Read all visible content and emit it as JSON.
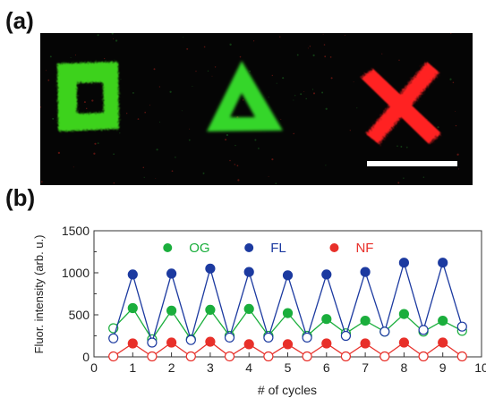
{
  "panels": {
    "a": "(a)",
    "b": "(b)"
  },
  "micrograph": {
    "background": "#050505",
    "shapes": [
      {
        "name": "square",
        "color": "#3ed21e"
      },
      {
        "name": "triangle",
        "color": "#34d62a"
      },
      {
        "name": "cross",
        "color": "#ff2020"
      }
    ],
    "scale_bar_color": "#ffffff"
  },
  "chart_data": {
    "type": "scatter",
    "title": "",
    "xlabel": "# of cycles",
    "ylabel": "Fluor. intensity (arb. u.)",
    "xlim": [
      0,
      10
    ],
    "ylim": [
      0,
      1500
    ],
    "xticks": [
      0,
      1,
      2,
      3,
      4,
      5,
      6,
      7,
      8,
      9,
      10
    ],
    "yticks": [
      0,
      500,
      1000,
      1500
    ],
    "legend_position": "top",
    "series": [
      {
        "name": "OG",
        "color": "#1aae3c",
        "x": [
          0.5,
          1,
          1.5,
          2,
          2.5,
          3,
          3.5,
          4,
          4.5,
          5,
          5.5,
          6,
          6.5,
          7,
          7.5,
          8,
          8.5,
          9,
          9.5
        ],
        "y": [
          340,
          580,
          210,
          550,
          210,
          560,
          250,
          570,
          250,
          520,
          250,
          450,
          280,
          430,
          300,
          510,
          300,
          430,
          310
        ],
        "filled": [
          false,
          true,
          false,
          true,
          false,
          true,
          false,
          true,
          false,
          true,
          false,
          true,
          false,
          true,
          false,
          true,
          false,
          true,
          false
        ]
      },
      {
        "name": "FL",
        "color": "#1c3aa0",
        "x": [
          0.5,
          1,
          1.5,
          2,
          2.5,
          3,
          3.5,
          4,
          4.5,
          5,
          5.5,
          6,
          6.5,
          7,
          7.5,
          8,
          8.5,
          9,
          9.5
        ],
        "y": [
          220,
          980,
          170,
          990,
          200,
          1050,
          230,
          1010,
          230,
          970,
          230,
          980,
          250,
          1010,
          300,
          1120,
          320,
          1120,
          360
        ],
        "filled": [
          false,
          true,
          false,
          true,
          false,
          true,
          false,
          true,
          false,
          true,
          false,
          true,
          false,
          true,
          false,
          true,
          false,
          true,
          false
        ]
      },
      {
        "name": "NF",
        "color": "#e8302a",
        "x": [
          0.5,
          1,
          1.5,
          2,
          2.5,
          3,
          3.5,
          4,
          4.5,
          5,
          5.5,
          6,
          6.5,
          7,
          7.5,
          8,
          8.5,
          9,
          9.5
        ],
        "y": [
          5,
          160,
          5,
          170,
          5,
          180,
          5,
          150,
          5,
          150,
          5,
          160,
          5,
          160,
          5,
          170,
          5,
          170,
          5
        ],
        "filled": [
          false,
          true,
          false,
          true,
          false,
          true,
          false,
          true,
          false,
          true,
          false,
          true,
          false,
          true,
          false,
          true,
          false,
          true,
          false
        ]
      }
    ]
  }
}
